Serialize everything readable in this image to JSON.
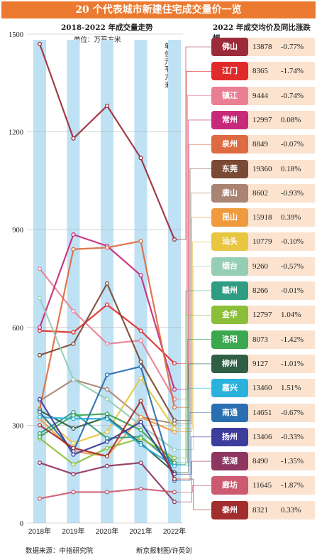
{
  "header": {
    "title": "20 个代表城市新建住宅成交量价一览",
    "chart_subtitle": "2018-2022 年成交量走势",
    "chart_unit": "单位：万平方米",
    "table_subtitle": "2022 年成交均价及同比涨跌幅",
    "table_unit": "单位：元/平方米"
  },
  "footer": {
    "source": "数据来源：中指研究院",
    "credit": "新京报制图/许英剑"
  },
  "chart_data": {
    "type": "line",
    "categories": [
      "2018年",
      "2019年",
      "2020年",
      "2021年",
      "2022年"
    ],
    "ylim": [
      0,
      1500
    ],
    "yticks": [
      0,
      300,
      600,
      900,
      1200,
      1500
    ],
    "series": [
      {
        "name": "佛山",
        "color": "#9b2b3a",
        "values": [
          1470,
          1180,
          1280,
          1120,
          870
        ]
      },
      {
        "name": "江门",
        "color": "#e12b2b",
        "values": [
          590,
          585,
          670,
          590,
          490
        ]
      },
      {
        "name": "镇江",
        "color": "#ea7f93",
        "values": [
          780,
          650,
          550,
          560,
          380
        ]
      },
      {
        "name": "常州",
        "color": "#c72a7a",
        "values": [
          600,
          885,
          850,
          760,
          410
        ]
      },
      {
        "name": "泉州",
        "color": "#dd6a40",
        "values": [
          350,
          840,
          845,
          865,
          355
        ]
      },
      {
        "name": "东莞",
        "color": "#7b4a35",
        "values": [
          515,
          550,
          735,
          495,
          315
        ]
      },
      {
        "name": "唐山",
        "color": "#a98472",
        "values": [
          375,
          440,
          410,
          325,
          305
        ]
      },
      {
        "name": "昆山",
        "color": "#f09a3e",
        "values": [
          320,
          220,
          205,
          325,
          280
        ]
      },
      {
        "name": "汕头",
        "color": "#e8c642",
        "values": [
          330,
          245,
          280,
          445,
          290
        ]
      },
      {
        "name": "烟台",
        "color": "#95cdb5",
        "values": [
          690,
          440,
          380,
          300,
          225
        ]
      },
      {
        "name": "赣州",
        "color": "#2f9d82",
        "values": [
          275,
          340,
          260,
          265,
          180
        ]
      },
      {
        "name": "金华",
        "color": "#8bbf3a",
        "values": [
          260,
          180,
          230,
          260,
          200
        ]
      },
      {
        "name": "洛阳",
        "color": "#3ba74f",
        "values": [
          265,
          330,
          335,
          285,
          185
        ]
      },
      {
        "name": "柳州",
        "color": "#2f5e45",
        "values": [
          345,
          290,
          325,
          245,
          155
        ]
      },
      {
        "name": "嘉兴",
        "color": "#2ab2dd",
        "values": [
          325,
          320,
          320,
          240,
          175
        ]
      },
      {
        "name": "南通",
        "color": "#2a6fb2",
        "values": [
          340,
          220,
          455,
          480,
          130
        ]
      },
      {
        "name": "扬州",
        "color": "#3d3d9e",
        "values": [
          380,
          210,
          250,
          310,
          150
        ]
      },
      {
        "name": "芜湖",
        "color": "#8e3660",
        "values": [
          185,
          150,
          175,
          185,
          65
        ]
      },
      {
        "name": "廊坊",
        "color": "#cc5a70",
        "values": [
          75,
          95,
          95,
          105,
          95
        ]
      },
      {
        "name": "泰州",
        "color": "#a32e2e",
        "values": [
          300,
          230,
          205,
          375,
          135
        ]
      }
    ]
  },
  "table": [
    {
      "city": "佛山",
      "price": "13878",
      "change": "-0.77%",
      "color": "#9b2b3a"
    },
    {
      "city": "江门",
      "price": "8365",
      "change": "-1.74%",
      "color": "#e12b2b"
    },
    {
      "city": "镇江",
      "price": "9444",
      "change": "-0.74%",
      "color": "#ea7f93"
    },
    {
      "city": "常州",
      "price": "12997",
      "change": "0.08%",
      "color": "#c72a7a"
    },
    {
      "city": "泉州",
      "price": "8849",
      "change": "-0.07%",
      "color": "#dd6a40"
    },
    {
      "city": "东莞",
      "price": "19360",
      "change": "0.18%",
      "color": "#7b4a35"
    },
    {
      "city": "唐山",
      "price": "8602",
      "change": "-0.93%",
      "color": "#a98472"
    },
    {
      "city": "昆山",
      "price": "15918",
      "change": "0.39%",
      "color": "#f09a3e"
    },
    {
      "city": "汕头",
      "price": "10779",
      "change": "-0.10%",
      "color": "#e8c642"
    },
    {
      "city": "烟台",
      "price": "9260",
      "change": "-0.57%",
      "color": "#95cdb5"
    },
    {
      "city": "赣州",
      "price": "8266",
      "change": "-0.01%",
      "color": "#2f9d82"
    },
    {
      "city": "金华",
      "price": "12797",
      "change": "1.04%",
      "color": "#8bbf3a"
    },
    {
      "city": "洛阳",
      "price": "8073",
      "change": "-1.42%",
      "color": "#3ba74f"
    },
    {
      "city": "柳州",
      "price": "9127",
      "change": "-1.01%",
      "color": "#2f5e45"
    },
    {
      "city": "嘉兴",
      "price": "13460",
      "change": "1.51%",
      "color": "#2ab2dd"
    },
    {
      "city": "南通",
      "price": "14651",
      "change": "-0.67%",
      "color": "#2a6fb2"
    },
    {
      "city": "扬州",
      "price": "13406",
      "change": "-0.33%",
      "color": "#3d3d9e"
    },
    {
      "city": "芜湖",
      "price": "8490",
      "change": "-1.35%",
      "color": "#8e3660"
    },
    {
      "city": "廊坊",
      "price": "11645",
      "change": "-1.87%",
      "color": "#cc5a70"
    },
    {
      "city": "泰州",
      "price": "8321",
      "change": "0.33%",
      "color": "#a32e2e"
    }
  ]
}
